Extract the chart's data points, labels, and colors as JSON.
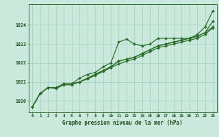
{
  "background_color": "#cbe8dc",
  "plot_bg_color": "#cbe8dc",
  "grid_color": "#9dcfbe",
  "line_color": "#2d6e2d",
  "marker_color": "#2d6e2d",
  "title": "Graphe pression niveau de la mer (hPa)",
  "title_color": "#1a4a1a",
  "xlim": [
    -0.5,
    23.5
  ],
  "ylim": [
    1019.4,
    1025.1
  ],
  "yticks": [
    1020,
    1021,
    1022,
    1023,
    1024
  ],
  "xticks": [
    0,
    1,
    2,
    3,
    4,
    5,
    6,
    7,
    8,
    9,
    10,
    11,
    12,
    13,
    14,
    15,
    16,
    17,
    18,
    19,
    20,
    21,
    22,
    23
  ],
  "series1": [
    1019.7,
    1020.4,
    1020.7,
    1020.7,
    1020.9,
    1020.9,
    1021.2,
    1021.4,
    1021.5,
    1021.8,
    1022.0,
    1023.1,
    1023.25,
    1023.0,
    1022.9,
    1023.0,
    1023.3,
    1023.3,
    1023.3,
    1023.3,
    1023.3,
    1023.5,
    1023.9,
    1024.75
  ],
  "series2": [
    1019.7,
    1020.4,
    1020.7,
    1020.7,
    1020.9,
    1020.9,
    1021.0,
    1021.2,
    1021.4,
    1021.6,
    1021.8,
    1022.1,
    1022.2,
    1022.3,
    1022.5,
    1022.7,
    1022.9,
    1023.0,
    1023.1,
    1023.2,
    1023.3,
    1023.4,
    1023.6,
    1024.2
  ],
  "series3": [
    1019.7,
    1020.4,
    1020.7,
    1020.7,
    1020.9,
    1020.9,
    1021.0,
    1021.2,
    1021.4,
    1021.6,
    1021.8,
    1022.1,
    1022.2,
    1022.3,
    1022.5,
    1022.7,
    1022.9,
    1023.0,
    1023.1,
    1023.2,
    1023.3,
    1023.4,
    1023.6,
    1023.9
  ],
  "series4": [
    1019.7,
    1020.4,
    1020.7,
    1020.65,
    1020.85,
    1020.85,
    1021.0,
    1021.15,
    1021.35,
    1021.55,
    1021.75,
    1021.95,
    1022.1,
    1022.2,
    1022.4,
    1022.6,
    1022.8,
    1022.9,
    1023.0,
    1023.1,
    1023.2,
    1023.3,
    1023.5,
    1023.85
  ]
}
